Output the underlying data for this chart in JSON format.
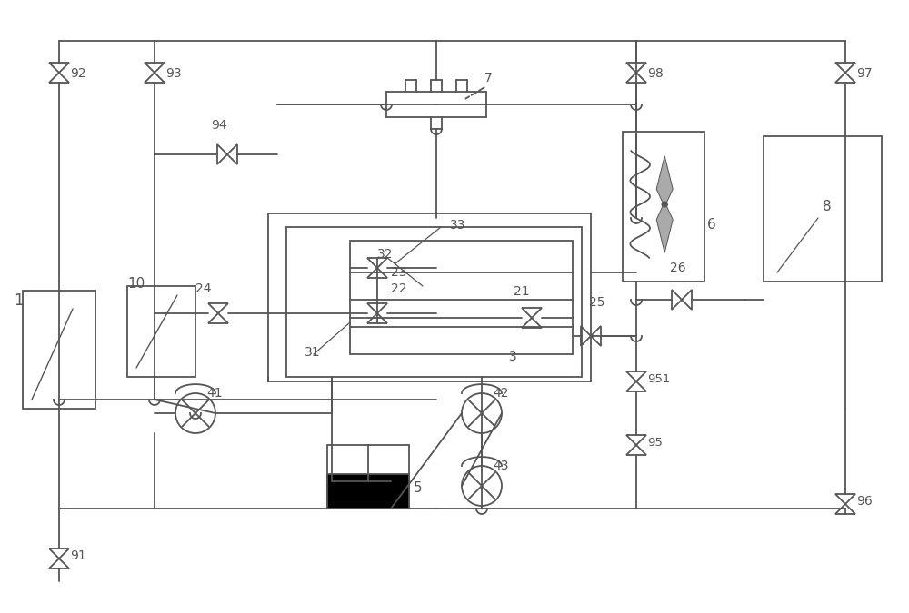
{
  "bg": "#ffffff",
  "lc": "#555555",
  "lw": 1.3,
  "fw": 10.0,
  "fh": 6.75,
  "dpi": 100
}
